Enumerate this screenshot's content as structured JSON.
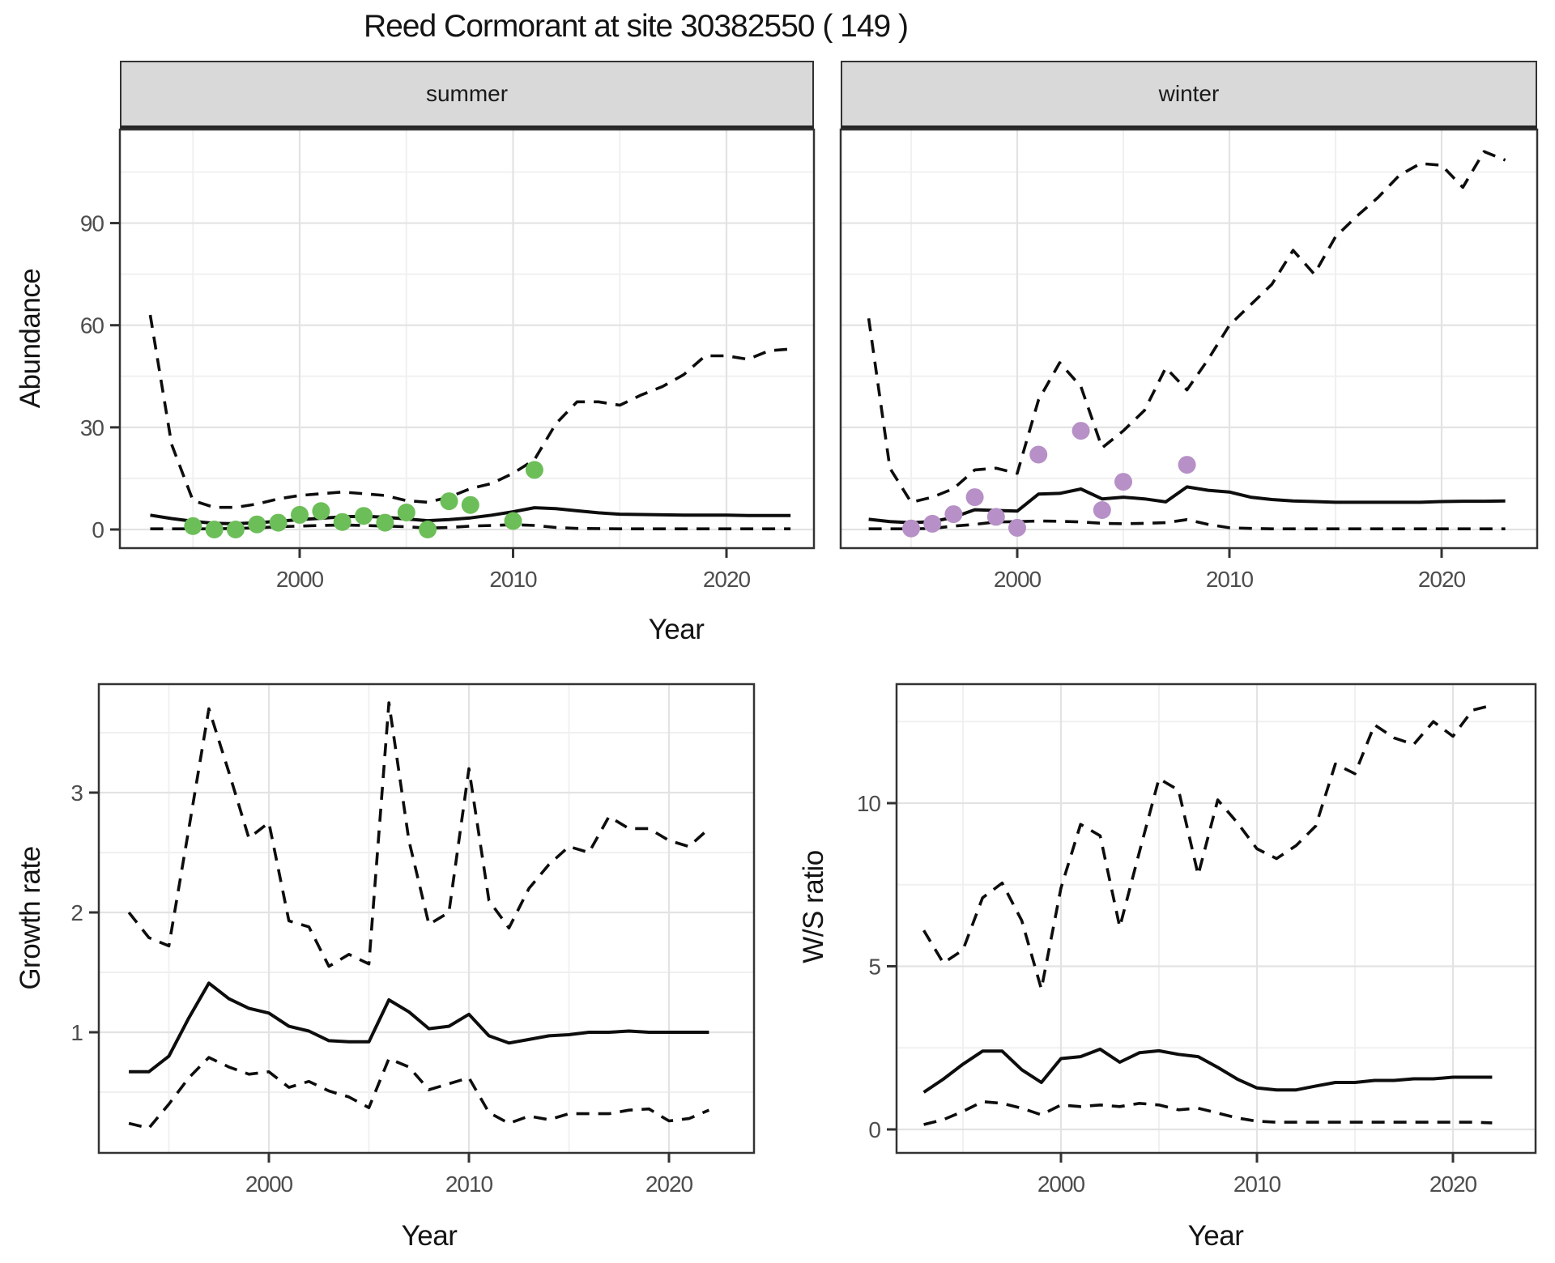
{
  "title": "Reed Cormorant at site 30382550 ( 149 )",
  "facets": {
    "summer_label": "summer",
    "winter_label": "winter"
  },
  "axis_titles": {
    "abundance": "Abundance",
    "year": "Year",
    "growth": "Growth rate",
    "ws": "W/S ratio"
  },
  "colors": {
    "summer_points": "#6cbe58",
    "winter_points": "#b690c6",
    "line": "#0d0d0d",
    "grid_major": "#e3e3e3",
    "grid_minor": "#f0f0f0",
    "panel_border": "#333333",
    "tick_mark": "#333333",
    "tick_text": "#4d4d4d",
    "strip_bg": "#d9d9d9"
  },
  "chart_data": [
    {
      "id": "abundance_summer",
      "type": "line",
      "facet": "summer",
      "xlabel": "Year",
      "ylabel": "Abundance",
      "xlim": [
        1991.5,
        2024.3
      ],
      "ylim": [
        -5.5,
        117.5
      ],
      "x_ticks": [
        2000,
        2010,
        2020
      ],
      "x_minor_ticks": [
        1995,
        2005,
        2015
      ],
      "y_ticks": [
        0,
        30,
        60,
        90
      ],
      "y_minor_ticks": [
        15,
        45,
        75,
        105
      ],
      "grid": true,
      "years": [
        1993,
        1994,
        1995,
        1996,
        1997,
        1998,
        1999,
        2000,
        2001,
        2002,
        2003,
        2004,
        2005,
        2006,
        2007,
        2008,
        2009,
        2010,
        2011,
        2012,
        2013,
        2014,
        2015,
        2016,
        2017,
        2018,
        2019,
        2020,
        2021,
        2022,
        2023
      ],
      "series": [
        {
          "name": "median_fit",
          "style": "solid",
          "values": [
            4.2,
            3.2,
            2.4,
            1.8,
            1.7,
            2.0,
            2.4,
            2.9,
            3.3,
            3.7,
            3.9,
            3.6,
            3.1,
            2.6,
            2.9,
            3.4,
            4.2,
            5.2,
            6.4,
            6.1,
            5.5,
            4.9,
            4.5,
            4.4,
            4.3,
            4.2,
            4.2,
            4.2,
            4.1,
            4.1,
            4.1
          ]
        },
        {
          "name": "upper_ci",
          "style": "dashed",
          "values": [
            63,
            25,
            8.5,
            6.5,
            6.5,
            7.5,
            9,
            10,
            10.5,
            11,
            10.5,
            10,
            8.5,
            8,
            9.5,
            12,
            13.5,
            16.5,
            20.5,
            31,
            37.5,
            37.5,
            36.5,
            39.5,
            42,
            45.5,
            51,
            51,
            50,
            52.5,
            53
          ]
        },
        {
          "name": "lower_ci",
          "style": "dashed",
          "values": [
            0.2,
            0.2,
            0.2,
            0.2,
            0.3,
            0.5,
            0.8,
            1.0,
            1.2,
            1.3,
            1.2,
            1.0,
            0.8,
            0.4,
            0.6,
            1.0,
            1.2,
            1.4,
            1.2,
            0.6,
            0.3,
            0.25,
            0.2,
            0.2,
            0.2,
            0.2,
            0.2,
            0.2,
            0.2,
            0.2,
            0.2
          ]
        }
      ],
      "points": {
        "name": "summer_counts",
        "color": "#6cbe58",
        "data": [
          [
            1995,
            1.0
          ],
          [
            1996,
            0
          ],
          [
            1997,
            0
          ],
          [
            1998,
            1.5
          ],
          [
            1999,
            2.0
          ],
          [
            2000,
            4.3
          ],
          [
            2001,
            5.4
          ],
          [
            2002,
            2.2
          ],
          [
            2003,
            4.0
          ],
          [
            2004,
            2.0
          ],
          [
            2005,
            5.0
          ],
          [
            2006,
            0
          ],
          [
            2007,
            8.3
          ],
          [
            2008,
            7.2
          ],
          [
            2010,
            2.5
          ],
          [
            2011,
            17.5
          ]
        ]
      }
    },
    {
      "id": "abundance_winter",
      "type": "line",
      "facet": "winter",
      "xlabel": "Year",
      "ylabel": "Abundance",
      "xlim": [
        1991.5,
        2024.3
      ],
      "ylim": [
        -5.5,
        117.5
      ],
      "x_ticks": [
        2000,
        2010,
        2020
      ],
      "x_minor_ticks": [
        1995,
        2005,
        2015
      ],
      "y_ticks": [
        0,
        30,
        60,
        90
      ],
      "y_minor_ticks": [
        15,
        45,
        75,
        105
      ],
      "grid": true,
      "years": [
        1993,
        1994,
        1995,
        1996,
        1997,
        1998,
        1999,
        2000,
        2001,
        2002,
        2003,
        2004,
        2005,
        2006,
        2007,
        2008,
        2009,
        2010,
        2011,
        2012,
        2013,
        2014,
        2015,
        2016,
        2017,
        2018,
        2019,
        2020,
        2021,
        2022,
        2023
      ],
      "series": [
        {
          "name": "median_fit",
          "style": "solid",
          "values": [
            3.0,
            2.3,
            2.0,
            2.3,
            3.6,
            5.8,
            5.6,
            5.4,
            10.4,
            10.6,
            11.9,
            9.0,
            9.5,
            9.0,
            8.1,
            12.5,
            11.5,
            11.0,
            9.5,
            8.8,
            8.4,
            8.2,
            8.0,
            8.0,
            8.0,
            8.0,
            8.0,
            8.2,
            8.3,
            8.3,
            8.4
          ]
        },
        {
          "name": "upper_ci",
          "style": "dashed",
          "values": [
            62,
            18,
            8,
            9.5,
            12,
            17.5,
            18,
            16.5,
            38,
            49,
            42,
            24,
            29,
            35,
            47.5,
            41,
            50,
            60,
            66,
            72,
            82,
            75,
            86,
            92,
            97.5,
            104,
            107.5,
            107,
            100.5,
            111,
            108.5
          ]
        },
        {
          "name": "lower_ci",
          "style": "dashed",
          "values": [
            0.2,
            0.2,
            0.2,
            0.3,
            1.0,
            1.5,
            2.2,
            2.3,
            2.5,
            2.4,
            2.2,
            1.8,
            1.7,
            1.8,
            2.0,
            2.9,
            1.5,
            0.5,
            0.3,
            0.2,
            0.2,
            0.2,
            0.2,
            0.2,
            0.2,
            0.2,
            0.2,
            0.2,
            0.2,
            0.2,
            0.2
          ]
        }
      ],
      "points": {
        "name": "winter_counts",
        "color": "#b690c6",
        "data": [
          [
            1995,
            0.3
          ],
          [
            1996,
            1.7
          ],
          [
            1997,
            4.5
          ],
          [
            1998,
            9.5
          ],
          [
            1999,
            3.7
          ],
          [
            2000,
            0.5
          ],
          [
            2001,
            22
          ],
          [
            2003,
            29
          ],
          [
            2004,
            5.7
          ],
          [
            2005,
            14
          ],
          [
            2008,
            19
          ]
        ]
      }
    },
    {
      "id": "growth_rate",
      "type": "line",
      "xlabel": "Year",
      "ylabel": "Growth rate",
      "xlim": [
        1991.5,
        2024.5
      ],
      "ylim": [
        0,
        3.9
      ],
      "x_ticks": [
        2000,
        2010,
        2020
      ],
      "x_minor_ticks": [
        1995,
        2005,
        2015
      ],
      "y_ticks": [
        1,
        2,
        3
      ],
      "y_minor_ticks": [
        0.5,
        1.5,
        2.5,
        3.5
      ],
      "grid": true,
      "years": [
        1993,
        1994,
        1995,
        1996,
        1997,
        1998,
        1999,
        2000,
        2001,
        2002,
        2003,
        2004,
        2005,
        2006,
        2007,
        2008,
        2009,
        2010,
        2011,
        2012,
        2013,
        2014,
        2015,
        2016,
        2017,
        2018,
        2019,
        2020,
        2021,
        2022
      ],
      "series": [
        {
          "name": "median_fit",
          "style": "solid",
          "values": [
            0.67,
            0.67,
            0.8,
            1.12,
            1.41,
            1.28,
            1.2,
            1.16,
            1.05,
            1.01,
            0.93,
            0.92,
            0.92,
            1.27,
            1.17,
            1.03,
            1.05,
            1.15,
            0.97,
            0.91,
            0.94,
            0.97,
            0.98,
            1.0,
            1.0,
            1.01,
            1.0,
            1.0,
            1.0,
            1.0
          ]
        },
        {
          "name": "upper_ci",
          "style": "dashed",
          "values": [
            2.0,
            1.79,
            1.72,
            2.7,
            3.7,
            3.17,
            2.62,
            2.75,
            1.93,
            1.88,
            1.55,
            1.65,
            1.57,
            3.75,
            2.6,
            1.9,
            2.0,
            3.2,
            2.1,
            1.87,
            2.2,
            2.4,
            2.55,
            2.5,
            2.8,
            2.7,
            2.7,
            2.6,
            2.55,
            2.7
          ]
        },
        {
          "name": "lower_ci",
          "style": "dashed",
          "values": [
            0.24,
            0.2,
            0.4,
            0.62,
            0.79,
            0.71,
            0.65,
            0.67,
            0.54,
            0.59,
            0.51,
            0.46,
            0.37,
            0.78,
            0.71,
            0.52,
            0.57,
            0.62,
            0.33,
            0.24,
            0.3,
            0.27,
            0.32,
            0.32,
            0.32,
            0.35,
            0.36,
            0.26,
            0.28,
            0.35
          ]
        }
      ]
    },
    {
      "id": "ws_ratio",
      "type": "line",
      "xlabel": "Year",
      "ylabel": "W/S ratio",
      "xlim": [
        1991.6,
        2024.3
      ],
      "ylim": [
        -0.7,
        13.6
      ],
      "x_ticks": [
        2000,
        2010,
        2020
      ],
      "x_minor_ticks": [
        1995,
        2005,
        2015
      ],
      "y_ticks": [
        0,
        5,
        10
      ],
      "y_minor_ticks": [
        2.5,
        7.5,
        12.5
      ],
      "grid": true,
      "years": [
        1993,
        1994,
        1995,
        1996,
        1997,
        1998,
        1999,
        2000,
        2001,
        2002,
        2003,
        2004,
        2005,
        2006,
        2007,
        2008,
        2009,
        2010,
        2011,
        2012,
        2013,
        2014,
        2015,
        2016,
        2017,
        2018,
        2019,
        2020,
        2021,
        2022
      ],
      "series": [
        {
          "name": "median_fit",
          "style": "solid",
          "values": [
            1.14,
            1.54,
            2.0,
            2.4,
            2.4,
            1.83,
            1.44,
            2.17,
            2.23,
            2.46,
            2.06,
            2.35,
            2.41,
            2.3,
            2.23,
            1.9,
            1.54,
            1.27,
            1.21,
            1.21,
            1.33,
            1.44,
            1.44,
            1.5,
            1.5,
            1.55,
            1.55,
            1.6,
            1.6,
            1.6
          ]
        },
        {
          "name": "upper_ci",
          "style": "dashed",
          "values": [
            6.1,
            5.1,
            5.5,
            7.1,
            7.55,
            6.4,
            4.3,
            7.4,
            9.35,
            9.0,
            6.2,
            8.5,
            10.75,
            10.4,
            7.8,
            10.1,
            9.4,
            8.6,
            8.3,
            8.7,
            9.3,
            11.2,
            10.9,
            12.4,
            12.0,
            11.8,
            12.5,
            12.05,
            12.85,
            13.0
          ]
        },
        {
          "name": "lower_ci",
          "style": "dashed",
          "values": [
            0.15,
            0.3,
            0.55,
            0.85,
            0.8,
            0.65,
            0.45,
            0.75,
            0.7,
            0.75,
            0.7,
            0.8,
            0.75,
            0.6,
            0.65,
            0.5,
            0.35,
            0.25,
            0.22,
            0.22,
            0.22,
            0.22,
            0.22,
            0.22,
            0.22,
            0.22,
            0.22,
            0.22,
            0.22,
            0.2
          ]
        }
      ]
    }
  ]
}
